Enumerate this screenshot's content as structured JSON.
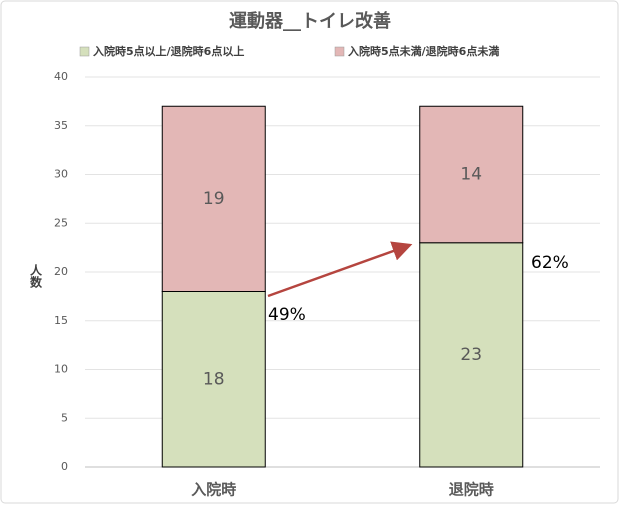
{
  "chart_data": {
    "type": "stacked_bar",
    "title": "運動器__トイレ改善",
    "categories": [
      "入院時",
      "退院時"
    ],
    "series": [
      {
        "name": "入院時5点以上/退院時6点以上",
        "color": "#d5e0bc",
        "values": [
          18,
          23
        ]
      },
      {
        "name": "入院時5点未満/退院時6点未満",
        "color": "#e3b7b6",
        "values": [
          19,
          14
        ]
      }
    ],
    "ylabel": "人数",
    "ylim": [
      0,
      40
    ],
    "yticks": [
      0,
      5,
      10,
      15,
      20,
      25,
      30,
      35,
      40
    ],
    "grid": true,
    "legend": "top",
    "annotations": [
      "49%",
      "62%"
    ]
  }
}
